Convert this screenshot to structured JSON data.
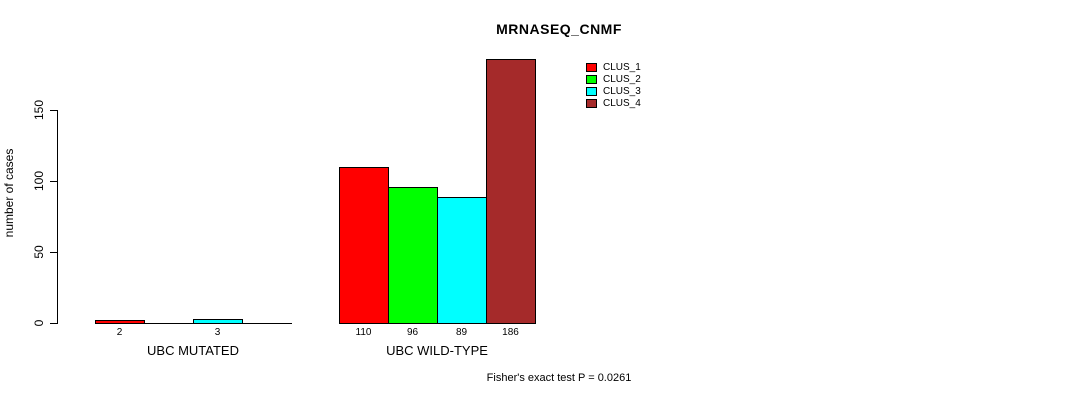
{
  "chart_data": {
    "type": "bar",
    "title": "MRNASEQ_CNMF",
    "ylabel": "number of cases",
    "xlabel": "",
    "footnote": "Fisher's exact test P = 0.0261",
    "yticks": [
      0,
      50,
      100,
      150
    ],
    "ylim": [
      0,
      190
    ],
    "grid": false,
    "legend_position": "top-right",
    "series": [
      {
        "name": "CLUS_1",
        "color": "#ff0000"
      },
      {
        "name": "CLUS_2",
        "color": "#00ff00"
      },
      {
        "name": "CLUS_3",
        "color": "#00ffff"
      },
      {
        "name": "CLUS_4",
        "color": "#a52a2a"
      }
    ],
    "categories": [
      "UBC MUTATED",
      "UBC WILD-TYPE"
    ],
    "groups": [
      {
        "label": "UBC MUTATED",
        "values": [
          2,
          0,
          3,
          0
        ]
      },
      {
        "label": "UBC WILD-TYPE",
        "values": [
          110,
          96,
          89,
          186
        ]
      }
    ]
  }
}
